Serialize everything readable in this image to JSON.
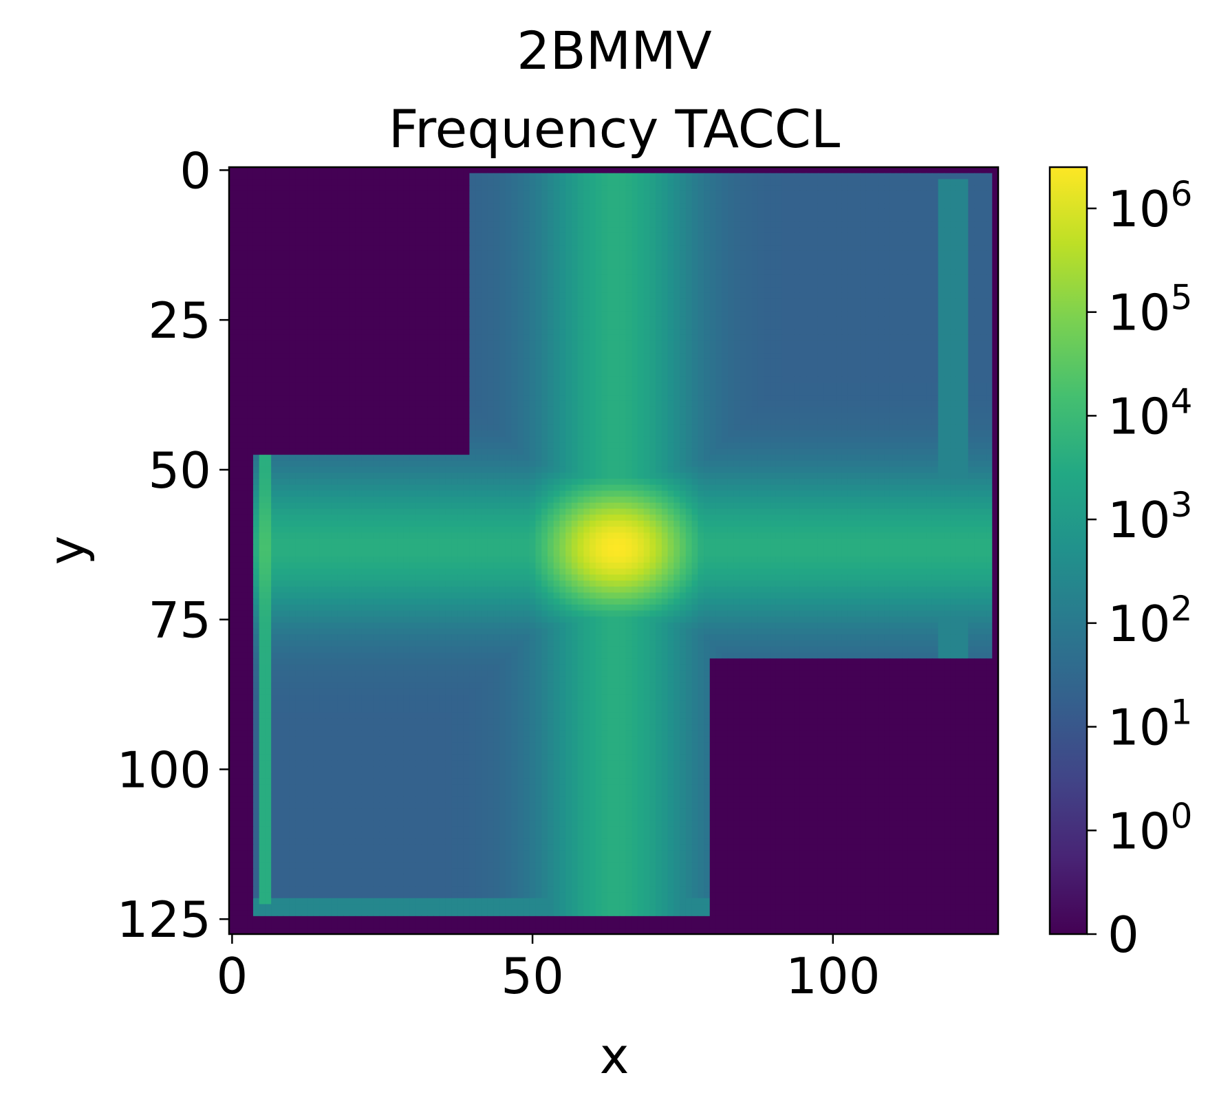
{
  "chart_data": {
    "type": "heatmap",
    "title": "2BMMV",
    "subtitle": "Frequency TACCL",
    "xlabel": "x",
    "ylabel": "y",
    "xlim": [
      0,
      127
    ],
    "ylim": [
      127,
      0
    ],
    "x_ticks": [
      0,
      50,
      100
    ],
    "x_tick_labels": [
      "0",
      "50",
      "100"
    ],
    "y_ticks": [
      0,
      25,
      50,
      75,
      100,
      125
    ],
    "y_tick_labels": [
      "0",
      "25",
      "50",
      "75",
      "100",
      "125"
    ],
    "grid": false,
    "colormap": "viridis",
    "color_scale": "symlog",
    "colorbar": {
      "range": [
        0,
        2500000
      ],
      "ticks": [
        {
          "value": 0,
          "base": "0",
          "exp": ""
        },
        {
          "value": 1,
          "base": "10",
          "exp": "0"
        },
        {
          "value": 10,
          "base": "10",
          "exp": "1"
        },
        {
          "value": 100,
          "base": "10",
          "exp": "2"
        },
        {
          "value": 1000,
          "base": "10",
          "exp": "3"
        },
        {
          "value": 10000,
          "base": "10",
          "exp": "4"
        },
        {
          "value": 100000,
          "base": "10",
          "exp": "5"
        },
        {
          "value": 1000000,
          "base": "10",
          "exp": "6"
        }
      ]
    },
    "grid_size": [
      128,
      128
    ],
    "peak": {
      "x": 64,
      "y": 63,
      "value": 2500000
    },
    "regions": [
      {
        "name": "zero-top-left",
        "x": [
          0,
          39
        ],
        "y": [
          0,
          47
        ],
        "value": 0
      },
      {
        "name": "zero-bottom-right",
        "x": [
          80,
          127
        ],
        "y": [
          82,
          127
        ],
        "value": 0
      },
      {
        "name": "upper-right-block",
        "x": [
          40,
          126
        ],
        "y": [
          1,
          82
        ],
        "value": 20
      },
      {
        "name": "lower-left-block",
        "x": [
          4,
          80
        ],
        "y": [
          47,
          124
        ],
        "value": 20
      },
      {
        "name": "vertical-band",
        "x_center": 64,
        "value": 3000
      },
      {
        "name": "horizontal-band",
        "y_center": 63,
        "value": 3000
      }
    ]
  }
}
